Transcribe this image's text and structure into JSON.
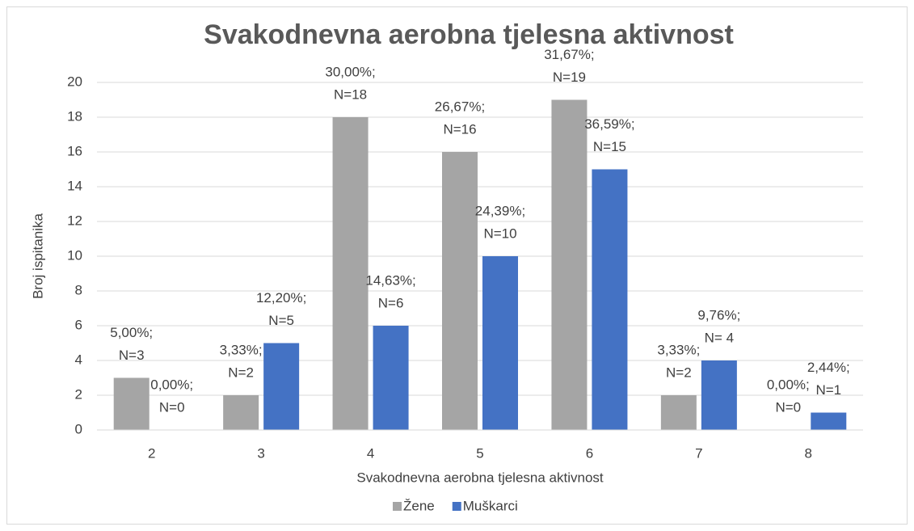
{
  "chart_data": {
    "type": "bar",
    "title": "Svakodnevna aerobna tjelesna aktivnost",
    "x_label": "Svakodnevna aerobna tjelesna aktivnost",
    "y_label": "Broj ispitanika",
    "categories": [
      "2",
      "3",
      "4",
      "5",
      "6",
      "7",
      "8"
    ],
    "series": [
      {
        "name": "Žene",
        "color": "#a5a5a5",
        "values": [
          3,
          2,
          18,
          16,
          19,
          2,
          0
        ],
        "value_labels": [
          [
            "5,00%;",
            "N=3"
          ],
          [
            "3,33%;",
            "N=2"
          ],
          [
            "30,00%;",
            "N=18"
          ],
          [
            "26,67%;",
            "N=16"
          ],
          [
            "31,67%;",
            "N=19"
          ],
          [
            "3,33%;",
            "N=2"
          ],
          [
            "0,00%;",
            "N=0"
          ]
        ]
      },
      {
        "name": "Muškarci",
        "color": "#4472c4",
        "values": [
          0,
          5,
          6,
          10,
          15,
          4,
          1
        ],
        "value_labels": [
          [
            "0,00%;",
            "N=0"
          ],
          [
            "12,20%;",
            "N=5"
          ],
          [
            "14,63%;",
            "N=6"
          ],
          [
            "24,39%;",
            "N=10"
          ],
          [
            "36,59%;",
            "N=15"
          ],
          [
            "9,76%;",
            "N= 4"
          ],
          [
            "2,44%;",
            "N=1"
          ]
        ]
      }
    ],
    "ylim": [
      0,
      20
    ],
    "yticks": [
      0,
      2,
      4,
      6,
      8,
      10,
      12,
      14,
      16,
      18,
      20
    ],
    "grid": true,
    "legend": "bottom"
  }
}
